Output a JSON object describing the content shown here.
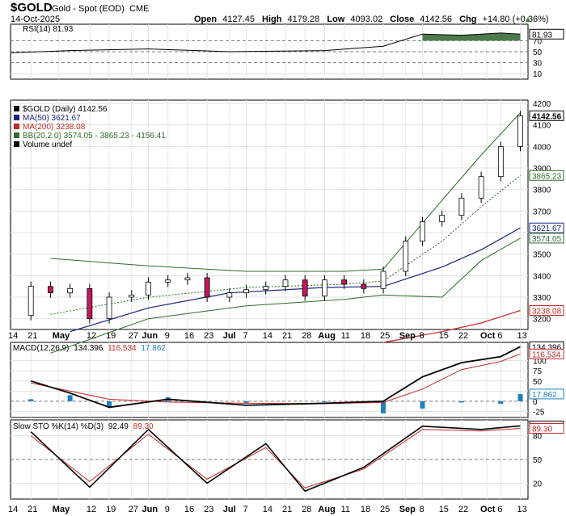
{
  "header": {
    "symbol": "$GOLD",
    "name": "Gold - Spot (EOD)",
    "exchange": "CME",
    "date": "14-Oct-2025",
    "open_label": "Open",
    "open": "4127.45",
    "high_label": "High",
    "high": "4179.28",
    "low_label": "Low",
    "low": "4093.02",
    "close_label": "Close",
    "close": "4142.56",
    "chg_label": "Chg",
    "chg": "+14.80 (+0.36%)",
    "chg_arrow": "▲"
  },
  "rsi": {
    "label": "RSI(14) 81.93",
    "levels": [
      70,
      50,
      30,
      10
    ],
    "value": 81.93,
    "value_label": "81.93",
    "color": "#000000",
    "fill": "#4d7a4d"
  },
  "price": {
    "legend": [
      {
        "text": "$GOLD (Daily) 4142.56",
        "color": "#000000"
      },
      {
        "text": "MA(50) 3621.67",
        "color": "#1a237e"
      },
      {
        "text": "MA(200) 3238.08",
        "color": "#c62828"
      },
      {
        "text": "BB(20,2.0) 3574.05 - 3865.23 - 4156.41",
        "color": "#2e6b2e"
      },
      {
        "text": "Volume undef",
        "color": "#000000"
      }
    ],
    "levels": [
      4200,
      4100,
      4000,
      3900,
      3800,
      3700,
      3600,
      3500,
      3400,
      3300,
      3200
    ],
    "labels": [
      {
        "value": 4142.56,
        "text": "4142.56",
        "color": "#000000",
        "bold": true
      },
      {
        "value": 3865.23,
        "text": "3865.23",
        "color": "#2e6b2e",
        "bold": false
      },
      {
        "value": 3621.67,
        "text": "3621.67",
        "color": "#1a237e",
        "bold": false
      },
      {
        "value": 3574.05,
        "text": "3574.05",
        "color": "#2e6b2e",
        "bold": false
      },
      {
        "value": 3238.08,
        "text": "3238.08",
        "color": "#c62828",
        "bold": false
      }
    ]
  },
  "macd": {
    "label_prefix": "MACD(12,26,9)",
    "macd_value": "134.396",
    "signal_value": "116.534",
    "hist_value": "17.862",
    "levels": [
      100,
      75,
      50,
      25,
      0,
      -25
    ],
    "labels": [
      {
        "value": 134.396,
        "text": "134.396",
        "color": "#000000"
      },
      {
        "value": 116.534,
        "text": "116.534",
        "color": "#c62828"
      },
      {
        "value": 17.862,
        "text": "17.862",
        "color": "#1f7fbf"
      }
    ]
  },
  "sto": {
    "label_prefix": "Slow STO %K(14) %D(3)",
    "k_value": "92.49",
    "d_value": "89.30",
    "levels": [
      80,
      50,
      20
    ],
    "labels": [
      {
        "value": 92.49,
        "text": "92.49",
        "color": "#000000"
      },
      {
        "value": 89.3,
        "text": "89.30",
        "color": "#c62828"
      }
    ]
  },
  "x_axis": {
    "ticks": [
      {
        "text": "14",
        "bold": false
      },
      {
        "text": "21",
        "bold": false
      },
      {
        "text": "May",
        "bold": true
      },
      {
        "text": "12",
        "bold": false
      },
      {
        "text": "19",
        "bold": false
      },
      {
        "text": "27",
        "bold": false
      },
      {
        "text": "Jun",
        "bold": true
      },
      {
        "text": "9",
        "bold": false
      },
      {
        "text": "16",
        "bold": false
      },
      {
        "text": "23",
        "bold": false
      },
      {
        "text": "Jul",
        "bold": true
      },
      {
        "text": "7",
        "bold": false
      },
      {
        "text": "14",
        "bold": false
      },
      {
        "text": "21",
        "bold": false
      },
      {
        "text": "28",
        "bold": false
      },
      {
        "text": "Aug",
        "bold": true
      },
      {
        "text": "11",
        "bold": false
      },
      {
        "text": "18",
        "bold": false
      },
      {
        "text": "25",
        "bold": false
      },
      {
        "text": "Sep",
        "bold": true
      },
      {
        "text": "8",
        "bold": false
      },
      {
        "text": "15",
        "bold": false
      },
      {
        "text": "22",
        "bold": false
      },
      {
        "text": "Oct",
        "bold": true
      },
      {
        "text": "6",
        "bold": false
      },
      {
        "text": "13",
        "bold": false
      }
    ]
  },
  "chart_data": {
    "type": "line",
    "x_label_order": [
      "14",
      "21",
      "May",
      "12",
      "19",
      "27",
      "Jun",
      "9",
      "16",
      "23",
      "Jul",
      "7",
      "14",
      "21",
      "28",
      "Aug",
      "11",
      "18",
      "25",
      "Sep",
      "8",
      "15",
      "22",
      "Oct",
      "6",
      "13"
    ],
    "price_series": [
      {
        "x": "Apr 14",
        "y": 3215
      },
      {
        "x": "Apr 21",
        "y": 3350
      },
      {
        "x": "Apr 28",
        "y": 3320
      },
      {
        "x": "May 5",
        "y": 3340
      },
      {
        "x": "May 12",
        "y": 3200
      },
      {
        "x": "May 19",
        "y": 3300
      },
      {
        "x": "May 27",
        "y": 3310
      },
      {
        "x": "Jun 2",
        "y": 3370
      },
      {
        "x": "Jun 9",
        "y": 3380
      },
      {
        "x": "Jun 16",
        "y": 3390
      },
      {
        "x": "Jun 23",
        "y": 3300
      },
      {
        "x": "Jul 1",
        "y": 3320
      },
      {
        "x": "Jul 7",
        "y": 3335
      },
      {
        "x": "Jul 14",
        "y": 3350
      },
      {
        "x": "Jul 21",
        "y": 3380
      },
      {
        "x": "Jul 28",
        "y": 3305
      },
      {
        "x": "Aug 4",
        "y": 3380
      },
      {
        "x": "Aug 11",
        "y": 3360
      },
      {
        "x": "Aug 18",
        "y": 3340
      },
      {
        "x": "Aug 25",
        "y": 3420
      },
      {
        "x": "Sep 2",
        "y": 3560
      },
      {
        "x": "Sep 8",
        "y": 3650
      },
      {
        "x": "Sep 15",
        "y": 3680
      },
      {
        "x": "Sep 22",
        "y": 3760
      },
      {
        "x": "Sep 29",
        "y": 3860
      },
      {
        "x": "Oct 6",
        "y": 4000
      },
      {
        "x": "Oct 13",
        "y": 4142.56
      }
    ],
    "ma50": [
      {
        "x": "May 5",
        "y": 3140
      },
      {
        "x": "Jun 2",
        "y": 3250
      },
      {
        "x": "Jul 1",
        "y": 3320
      },
      {
        "x": "Aug 4",
        "y": 3345
      },
      {
        "x": "Aug 25",
        "y": 3350
      },
      {
        "x": "Sep 15",
        "y": 3440
      },
      {
        "x": "Sep 29",
        "y": 3520
      },
      {
        "x": "Oct 13",
        "y": 3621.67
      }
    ],
    "ma200": [
      {
        "x": "Aug 25",
        "y": 3090
      },
      {
        "x": "Sep 15",
        "y": 3140
      },
      {
        "x": "Sep 29",
        "y": 3180
      },
      {
        "x": "Oct 13",
        "y": 3238.08
      }
    ],
    "bb_mid": [
      {
        "x": "Apr 28",
        "y": 3220
      },
      {
        "x": "Jun 2",
        "y": 3300
      },
      {
        "x": "Jul 7",
        "y": 3345
      },
      {
        "x": "Aug 11",
        "y": 3360
      },
      {
        "x": "Aug 25",
        "y": 3375
      },
      {
        "x": "Sep 15",
        "y": 3560
      },
      {
        "x": "Sep 29",
        "y": 3720
      },
      {
        "x": "Oct 13",
        "y": 3865.23
      }
    ],
    "bb_upper": [
      {
        "x": "Apr 28",
        "y": 3480
      },
      {
        "x": "Jun 2",
        "y": 3445
      },
      {
        "x": "Jul 7",
        "y": 3420
      },
      {
        "x": "Aug 11",
        "y": 3420
      },
      {
        "x": "Aug 25",
        "y": 3430
      },
      {
        "x": "Sep 15",
        "y": 3750
      },
      {
        "x": "Sep 29",
        "y": 3960
      },
      {
        "x": "Oct 13",
        "y": 4156.41
      }
    ],
    "bb_lower": [
      {
        "x": "Apr 28",
        "y": 3040
      },
      {
        "x": "Jun 2",
        "y": 3200
      },
      {
        "x": "Jul 7",
        "y": 3260
      },
      {
        "x": "Aug 11",
        "y": 3290
      },
      {
        "x": "Aug 25",
        "y": 3310
      },
      {
        "x": "Sep 15",
        "y": 3300
      },
      {
        "x": "Sep 29",
        "y": 3470
      },
      {
        "x": "Oct 13",
        "y": 3574.05
      }
    ],
    "rsi_series": [
      {
        "x": "Apr 14",
        "y": 48
      },
      {
        "x": "May 5",
        "y": 52
      },
      {
        "x": "Jun 2",
        "y": 55
      },
      {
        "x": "Jul 1",
        "y": 50
      },
      {
        "x": "Aug 4",
        "y": 52
      },
      {
        "x": "Aug 25",
        "y": 60
      },
      {
        "x": "Sep 8",
        "y": 82
      },
      {
        "x": "Sep 22",
        "y": 80
      },
      {
        "x": "Oct 6",
        "y": 84
      },
      {
        "x": "Oct 13",
        "y": 81.93
      }
    ],
    "macd_series": [
      {
        "x": "Apr 21",
        "y": 50
      },
      {
        "x": "May 5",
        "y": 20
      },
      {
        "x": "May 19",
        "y": -15
      },
      {
        "x": "Jun 9",
        "y": 5
      },
      {
        "x": "Jul 7",
        "y": -10
      },
      {
        "x": "Aug 4",
        "y": -5
      },
      {
        "x": "Aug 25",
        "y": 0
      },
      {
        "x": "Sep 8",
        "y": 60
      },
      {
        "x": "Sep 22",
        "y": 95
      },
      {
        "x": "Oct 6",
        "y": 110
      },
      {
        "x": "Oct 13",
        "y": 134.396
      }
    ],
    "signal_series": [
      {
        "x": "Apr 21",
        "y": 45
      },
      {
        "x": "May 19",
        "y": 5
      },
      {
        "x": "Jun 9",
        "y": -2
      },
      {
        "x": "Jul 7",
        "y": -5
      },
      {
        "x": "Aug 4",
        "y": -6
      },
      {
        "x": "Aug 25",
        "y": -3
      },
      {
        "x": "Sep 8",
        "y": 30
      },
      {
        "x": "Sep 22",
        "y": 78
      },
      {
        "x": "Oct 6",
        "y": 98
      },
      {
        "x": "Oct 13",
        "y": 116.534
      }
    ],
    "hist_last": 17.862,
    "sto_k": [
      {
        "x": "Apr 21",
        "y": 85
      },
      {
        "x": "May 12",
        "y": 15
      },
      {
        "x": "Jun 2",
        "y": 88
      },
      {
        "x": "Jun 23",
        "y": 20
      },
      {
        "x": "Jul 14",
        "y": 70
      },
      {
        "x": "Jul 28",
        "y": 10
      },
      {
        "x": "Aug 18",
        "y": 40
      },
      {
        "x": "Sep 8",
        "y": 92
      },
      {
        "x": "Sep 29",
        "y": 88
      },
      {
        "x": "Oct 13",
        "y": 92.49
      }
    ],
    "sto_d": [
      {
        "x": "Apr 21",
        "y": 80
      },
      {
        "x": "May 12",
        "y": 22
      },
      {
        "x": "Jun 2",
        "y": 82
      },
      {
        "x": "Jun 23",
        "y": 25
      },
      {
        "x": "Jul 14",
        "y": 65
      },
      {
        "x": "Jul 28",
        "y": 14
      },
      {
        "x": "Aug 18",
        "y": 38
      },
      {
        "x": "Sep 8",
        "y": 88
      },
      {
        "x": "Sep 29",
        "y": 86
      },
      {
        "x": "Oct 13",
        "y": 89.3
      }
    ]
  }
}
